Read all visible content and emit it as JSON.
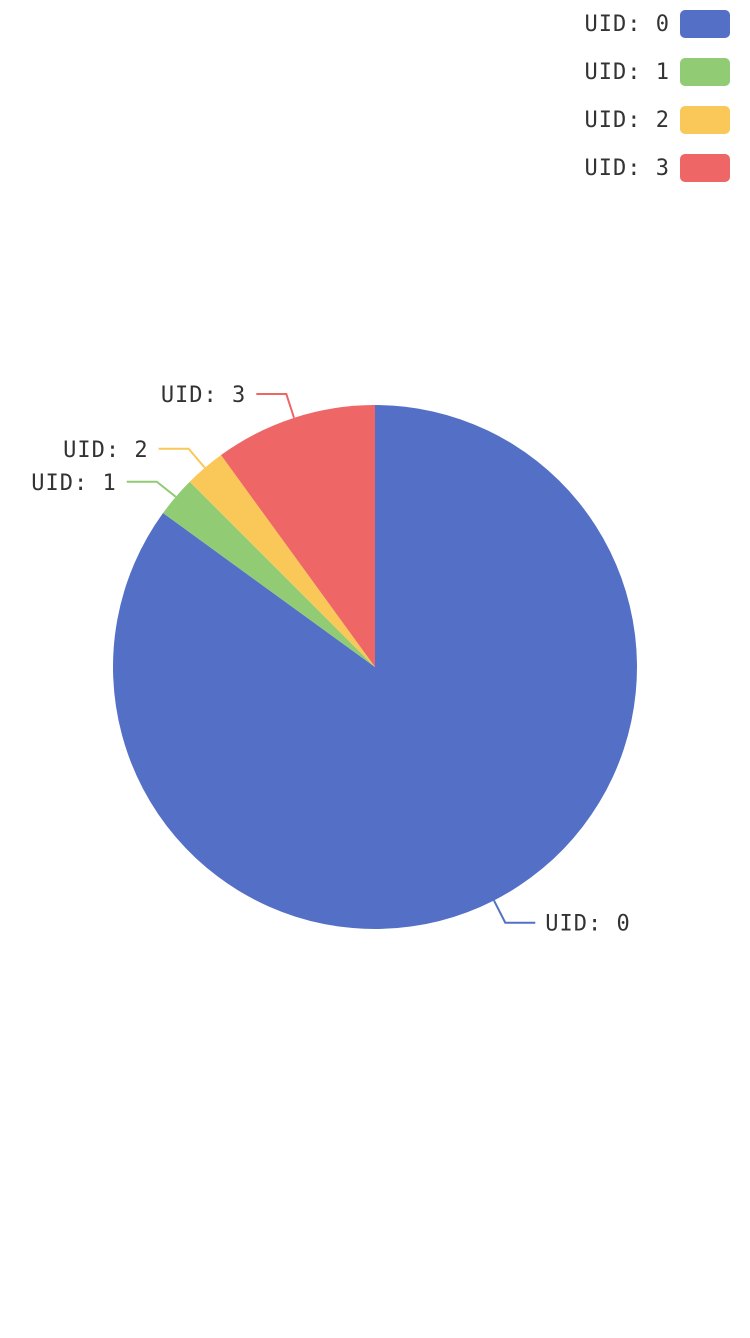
{
  "colors": [
    "#5470c6",
    "#91cc75",
    "#fac858",
    "#ee6666"
  ],
  "chart_data": {
    "type": "pie",
    "title": "",
    "categories": [
      "UID: 0",
      "UID: 1",
      "UID: 2",
      "UID: 3"
    ],
    "values": [
      85,
      2.5,
      2.5,
      10
    ],
    "legend_position": "top-right",
    "labels": "outside-with-leader-lines"
  },
  "legend": {
    "items": [
      {
        "label": "UID: 0"
      },
      {
        "label": "UID: 1"
      },
      {
        "label": "UID: 2"
      },
      {
        "label": "UID: 3"
      }
    ]
  }
}
